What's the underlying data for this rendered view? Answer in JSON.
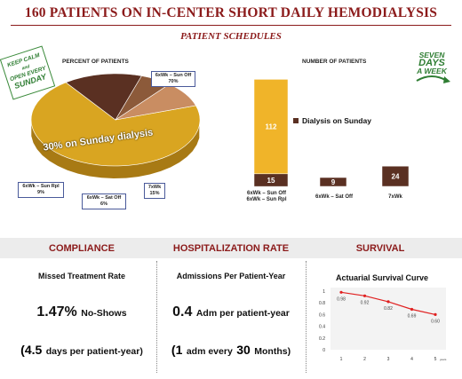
{
  "header": {
    "title": "160 PATIENTS ON IN-CENTER SHORT DAILY HEMODIALYSIS",
    "subtitle": "PATIENT SCHEDULES"
  },
  "badges": {
    "left_lines": [
      "KEEP CALM",
      "and",
      "OPEN EVERY",
      "SUNDAY"
    ],
    "right_lines": [
      "SEVEN",
      "DAYS",
      "A WEEK"
    ]
  },
  "pie": {
    "heading": "PERCENT OF PATIENTS",
    "slices": [
      {
        "label_line1": "6xWk – Sun Off",
        "label_line2": "70%",
        "value": 70,
        "color": "#d9a521"
      },
      {
        "label_line1": "7xWk",
        "label_line2": "15%",
        "value": 15,
        "color": "#5a3022"
      },
      {
        "label_line1": "6xWk – Sat Off",
        "label_line2": "6%",
        "value": 6,
        "color": "#8c5a3a"
      },
      {
        "label_line1": "6xWk – Sun Rpl",
        "label_line2": "9%",
        "value": 9,
        "color": "#c98d62"
      }
    ],
    "overlay_text": "30% on Sunday dialysis"
  },
  "bars": {
    "heading": "NUMBER OF PATIENTS",
    "legend": "Dialysis on Sunday",
    "legend_color": "#5a3022",
    "groups": [
      {
        "label_lines": [
          "6xWk – Sun Off",
          "6xWk – Sun Rpl"
        ],
        "segments": [
          {
            "value": 15,
            "color": "#5a3022"
          },
          {
            "value": 112,
            "color": "#f0b429"
          }
        ]
      },
      {
        "label_lines": [
          "6xWk – Sat Off"
        ],
        "segments": [
          {
            "value": 9,
            "color": "#5a3022"
          }
        ]
      },
      {
        "label_lines": [
          "7xWk"
        ],
        "segments": [
          {
            "value": 24,
            "color": "#5a3022"
          }
        ]
      }
    ]
  },
  "compliance": {
    "heading": "COMPLIANCE",
    "metric": "Missed Treatment Rate",
    "value": "1.47%",
    "value_suffix": "No-Shows",
    "note_open": "(",
    "note_value": "4.5",
    "note_text": "days per patient-year)"
  },
  "hospitalization": {
    "heading": "HOSPITALIZATION RATE",
    "metric": "Admissions Per Patient-Year",
    "value": "0.4",
    "value_suffix": "Adm per patient-year",
    "note_open": "(",
    "note_value_1": "1",
    "note_mid": "adm every",
    "note_value_2": "30",
    "note_text": "Months)"
  },
  "survival": {
    "heading": "SURVIVAL"
  },
  "chart_data": {
    "type": "line",
    "title": "Actuarial Survival Curve",
    "x": [
      1,
      2,
      3,
      4,
      5
    ],
    "x_unit": "years",
    "y": [
      0.98,
      0.92,
      0.82,
      0.69,
      0.6
    ],
    "ylim": [
      0,
      1
    ],
    "yticks": [
      0,
      0.2,
      0.4,
      0.6,
      0.8,
      1
    ],
    "ytick_labels": [
      "0",
      "0.2",
      "0.4",
      "0.6",
      "0.8",
      "1"
    ],
    "data_labels": [
      "0.98",
      "0.92",
      "0.82",
      "0.69",
      "0.60"
    ],
    "color": "#e02020"
  }
}
